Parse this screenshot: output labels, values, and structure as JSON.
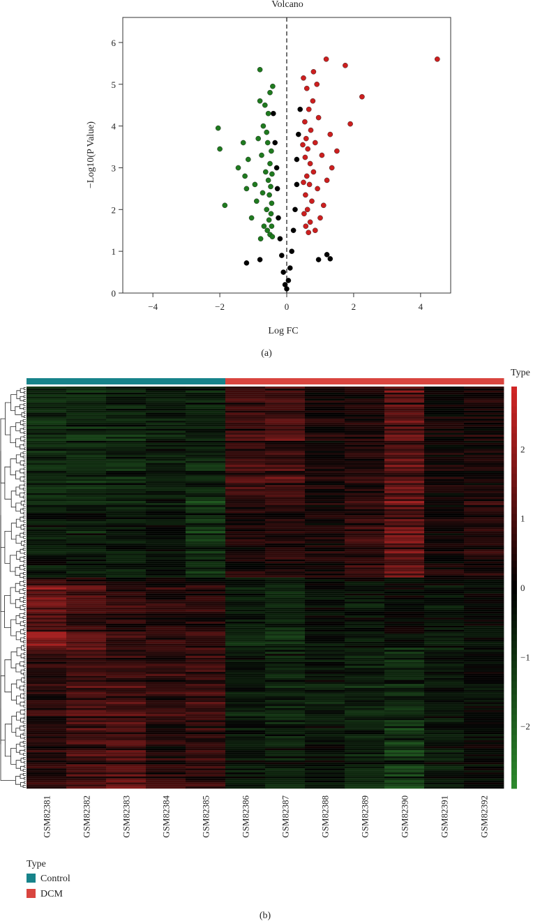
{
  "panel_a": {
    "label": "(a)",
    "chart_data": {
      "type": "scatter",
      "title": "Volcano",
      "xlabel": "Log FC",
      "ylabel": "−Log10(P Value)",
      "xlim": [
        -4.9,
        4.9
      ],
      "ylim": [
        0,
        6.6
      ],
      "xticks": [
        -4,
        -2,
        0,
        2,
        4
      ],
      "yticks": [
        0,
        1,
        2,
        3,
        4,
        5,
        6
      ],
      "xtick_labels": [
        "−4",
        "−2",
        "0",
        "2",
        "4"
      ],
      "ytick_labels": [
        "0",
        "1",
        "2",
        "3",
        "4",
        "5",
        "6"
      ],
      "threshold_line_x": 0,
      "series": [
        {
          "group": "down",
          "color": "#1f7a1f",
          "points": [
            [
              -2.05,
              3.95
            ],
            [
              -2.0,
              3.45
            ],
            [
              -1.85,
              2.1
            ],
            [
              -1.45,
              3.0
            ],
            [
              -1.3,
              3.6
            ],
            [
              -1.2,
              2.5
            ],
            [
              -1.15,
              3.2
            ],
            [
              -1.25,
              2.8
            ],
            [
              -1.05,
              1.8
            ],
            [
              -0.95,
              2.6
            ],
            [
              -0.9,
              2.2
            ],
            [
              -0.85,
              3.7
            ],
            [
              -0.8,
              5.35
            ],
            [
              -0.8,
              4.6
            ],
            [
              -0.78,
              1.3
            ],
            [
              -0.75,
              3.3
            ],
            [
              -0.72,
              2.4
            ],
            [
              -0.7,
              4.0
            ],
            [
              -0.68,
              1.6
            ],
            [
              -0.65,
              4.5
            ],
            [
              -0.63,
              2.9
            ],
            [
              -0.6,
              3.85
            ],
            [
              -0.6,
              2.0
            ],
            [
              -0.58,
              1.5
            ],
            [
              -0.57,
              3.6
            ],
            [
              -0.55,
              2.7
            ],
            [
              -0.55,
              4.3
            ],
            [
              -0.53,
              1.75
            ],
            [
              -0.52,
              2.35
            ],
            [
              -0.5,
              3.1
            ],
            [
              -0.5,
              1.4
            ],
            [
              -0.5,
              4.8
            ],
            [
              -0.48,
              2.55
            ],
            [
              -0.47,
              1.9
            ],
            [
              -0.46,
              3.4
            ],
            [
              -0.45,
              2.15
            ],
            [
              -0.45,
              1.6
            ],
            [
              -0.44,
              2.85
            ],
            [
              -0.43,
              1.35
            ],
            [
              -0.42,
              4.95
            ]
          ]
        },
        {
          "group": "up",
          "color": "#cc1f1f",
          "points": [
            [
              4.5,
              5.6
            ],
            [
              2.25,
              4.7
            ],
            [
              1.9,
              4.05
            ],
            [
              1.75,
              5.45
            ],
            [
              1.5,
              3.4
            ],
            [
              1.35,
              3.0
            ],
            [
              1.3,
              3.8
            ],
            [
              1.2,
              2.7
            ],
            [
              1.18,
              5.6
            ],
            [
              1.1,
              2.1
            ],
            [
              1.05,
              3.3
            ],
            [
              1.0,
              1.8
            ],
            [
              0.95,
              4.2
            ],
            [
              0.92,
              2.5
            ],
            [
              0.9,
              5.0
            ],
            [
              0.85,
              3.6
            ],
            [
              0.85,
              1.5
            ],
            [
              0.8,
              2.9
            ],
            [
              0.8,
              5.3
            ],
            [
              0.78,
              4.6
            ],
            [
              0.75,
              2.2
            ],
            [
              0.72,
              3.9
            ],
            [
              0.7,
              1.7
            ],
            [
              0.7,
              3.1
            ],
            [
              0.68,
              2.6
            ],
            [
              0.66,
              4.4
            ],
            [
              0.65,
              1.45
            ],
            [
              0.63,
              3.45
            ],
            [
              0.62,
              2.0
            ],
            [
              0.6,
              2.8
            ],
            [
              0.6,
              4.9
            ],
            [
              0.58,
              3.7
            ],
            [
              0.57,
              1.6
            ],
            [
              0.56,
              2.35
            ],
            [
              0.55,
              3.25
            ],
            [
              0.54,
              4.1
            ],
            [
              0.52,
              1.9
            ],
            [
              0.5,
              2.65
            ],
            [
              0.5,
              5.15
            ],
            [
              0.48,
              3.55
            ]
          ]
        },
        {
          "group": "ns",
          "color": "#000000",
          "points": [
            [
              1.2,
              0.92
            ],
            [
              1.3,
              0.82
            ],
            [
              0.95,
              0.8
            ],
            [
              -0.8,
              0.8
            ],
            [
              -1.2,
              0.72
            ],
            [
              -0.4,
              4.3
            ],
            [
              0.4,
              4.4
            ],
            [
              0.35,
              3.8
            ],
            [
              -0.35,
              3.6
            ],
            [
              0.3,
              3.2
            ],
            [
              -0.3,
              3.0
            ],
            [
              0.3,
              2.6
            ],
            [
              -0.28,
              2.5
            ],
            [
              0.25,
              2.0
            ],
            [
              -0.25,
              1.8
            ],
            [
              0.2,
              1.5
            ],
            [
              -0.2,
              1.3
            ],
            [
              0.15,
              1.0
            ],
            [
              -0.15,
              0.9
            ],
            [
              0.1,
              0.6
            ],
            [
              -0.1,
              0.5
            ],
            [
              0.05,
              0.3
            ],
            [
              -0.05,
              0.2
            ],
            [
              0.0,
              0.1
            ]
          ]
        }
      ]
    }
  },
  "panel_b": {
    "label": "(b)",
    "chart_data": {
      "type": "heatmap",
      "samples": [
        "GSM82381",
        "GSM82382",
        "GSM82383",
        "GSM82384",
        "GSM82385",
        "GSM82386",
        "GSM82387",
        "GSM82388",
        "GSM82389",
        "GSM82390",
        "GSM82391",
        "GSM82392"
      ],
      "sample_type": [
        "Control",
        "Control",
        "Control",
        "Control",
        "Control",
        "DCM",
        "DCM",
        "DCM",
        "DCM",
        "DCM",
        "DCM",
        "DCM"
      ],
      "colorbar": {
        "title": "Type",
        "range": [
          -2.9,
          2.9
        ],
        "ticks": [
          -2,
          -1,
          0,
          1,
          2
        ],
        "tick_labels": [
          "−2",
          "−1",
          "0",
          "1",
          "2"
        ],
        "low_color": "#2d8a2d",
        "mid_color": "#000000",
        "high_color": "#d42626"
      },
      "block_profiles": [
        {
          "rows": 55,
          "means": [
            -0.9,
            -1.0,
            -0.8,
            -0.6,
            -0.7,
            0.9,
            1.0,
            0.3,
            0.4,
            1.3,
            0.2,
            0.3
          ]
        },
        {
          "rows": 40,
          "means": [
            -0.5,
            -0.7,
            -0.6,
            -0.4,
            -1.1,
            0.4,
            0.5,
            0.4,
            0.8,
            1.6,
            0.3,
            0.6
          ]
        },
        {
          "rows": 35,
          "means": [
            1.6,
            1.1,
            0.7,
            0.5,
            0.6,
            -0.6,
            -0.8,
            -0.3,
            -0.4,
            -0.1,
            -0.4,
            -0.1
          ]
        },
        {
          "rows": 36,
          "means": [
            0.7,
            1.0,
            0.9,
            0.8,
            0.9,
            -0.5,
            -0.7,
            -0.5,
            -0.7,
            -0.9,
            -0.5,
            -0.2
          ]
        },
        {
          "rows": 34,
          "means": [
            0.5,
            0.9,
            1.1,
            0.5,
            0.6,
            -0.5,
            -0.6,
            -0.4,
            -0.6,
            -1.2,
            -0.5,
            -0.2
          ]
        }
      ],
      "legend": {
        "title": "Type",
        "items": [
          {
            "label": "Control",
            "color": "#17838a"
          },
          {
            "label": "DCM",
            "color": "#d9453f"
          }
        ]
      }
    }
  }
}
